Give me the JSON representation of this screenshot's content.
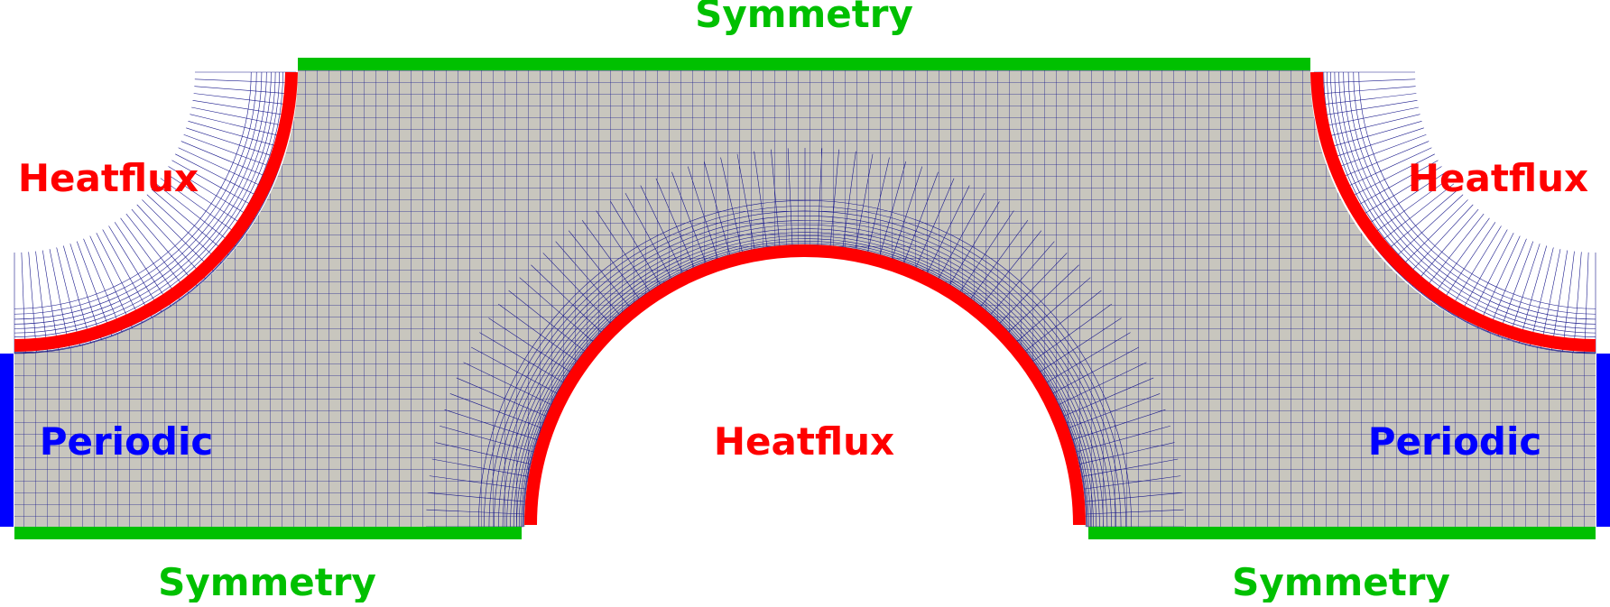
{
  "labels": {
    "symmetry_top": "Symmetry",
    "symmetry_bottom_left": "Symmetry",
    "symmetry_bottom_right": "Symmetry",
    "heatflux_left": "Heatflux",
    "heatflux_right": "Heatflux",
    "heatflux_center": "Heatflux",
    "periodic_left": "Periodic",
    "periodic_right": "Periodic"
  },
  "colors": {
    "symmetry": "#00c000",
    "heatflux": "#ff0000",
    "periodic": "#0000ff",
    "mesh_fill": "#c8c6be",
    "mesh_lines": "#1a1a8c",
    "background": "#ffffff"
  }
}
